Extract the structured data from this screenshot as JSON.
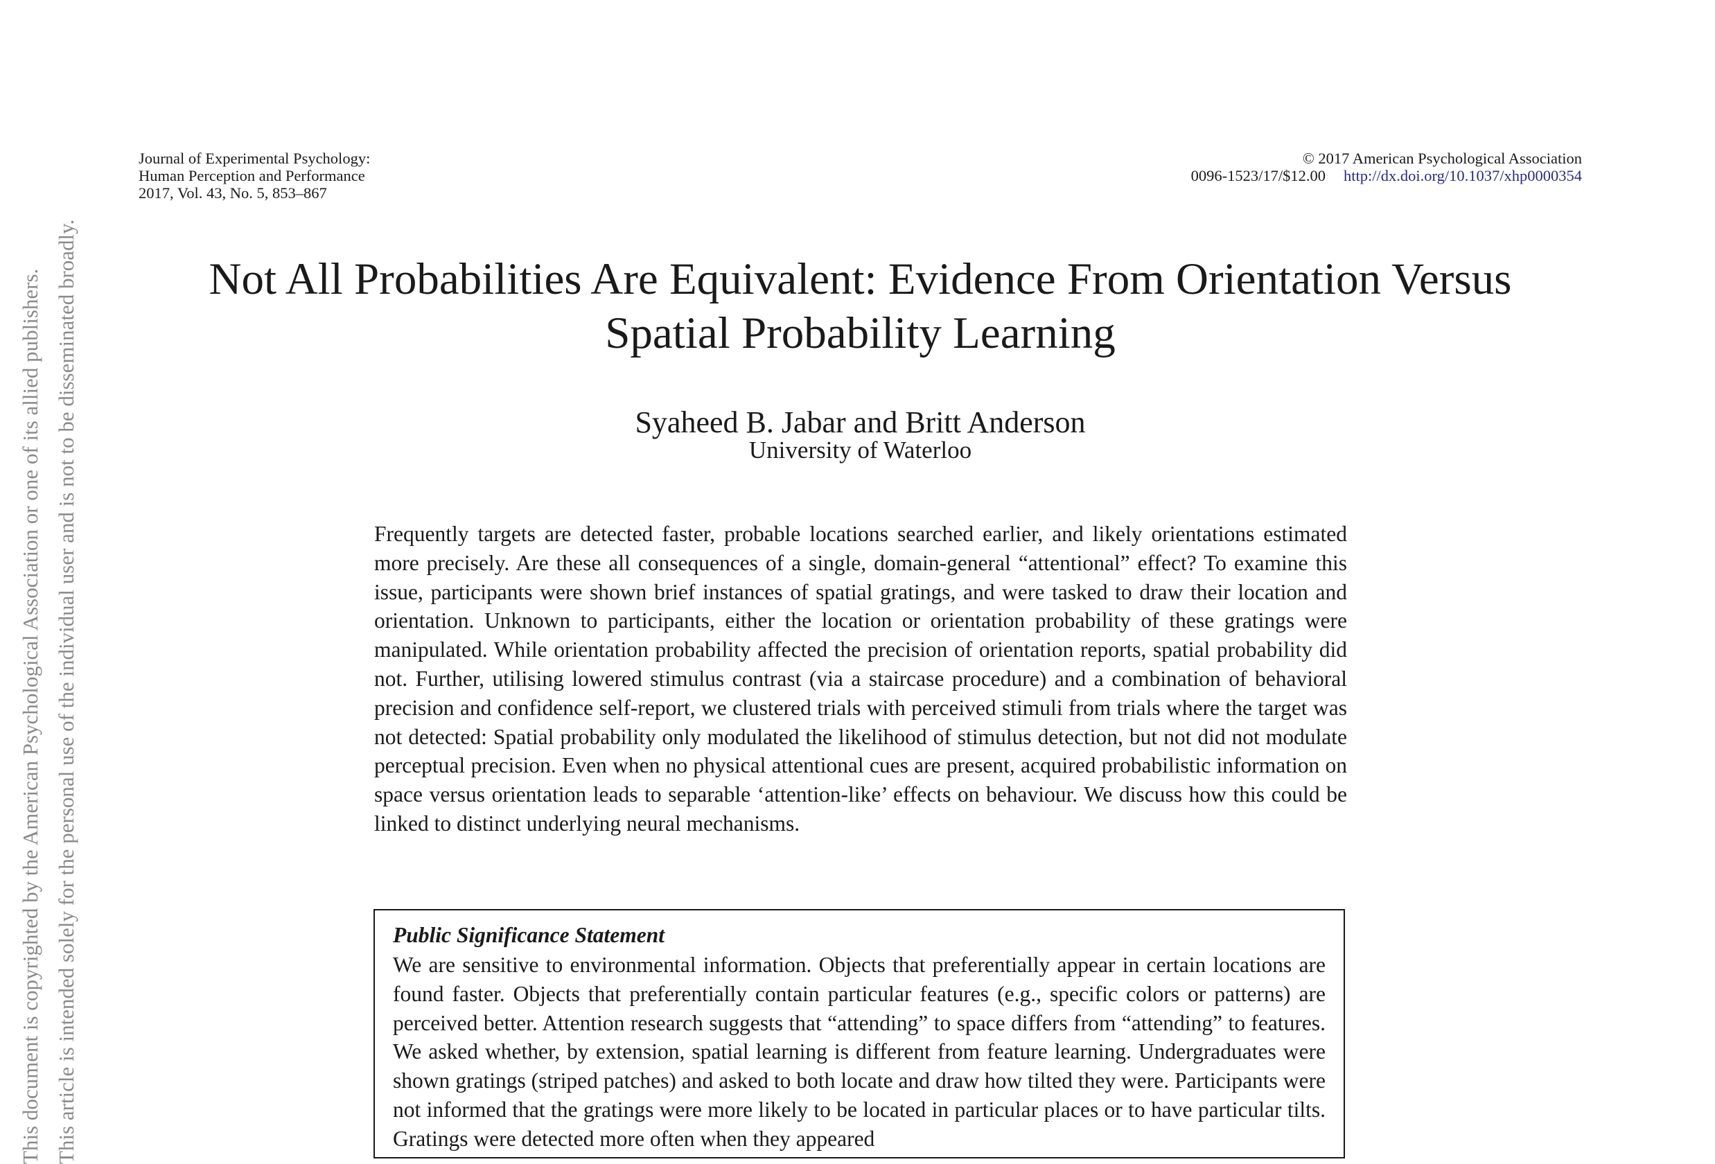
{
  "header": {
    "journal_line1": "Journal of Experimental Psychology:",
    "journal_line2": "Human Perception and Performance",
    "journal_line3": "2017, Vol. 43, No. 5, 853–867",
    "copyright": "© 2017 American Psychological Association",
    "issn_price": "0096-1523/17/$12.00",
    "doi": "http://dx.doi.org/10.1037/xhp0000354"
  },
  "article": {
    "title_line1": "Not All Probabilities Are Equivalent: Evidence From Orientation Versus",
    "title_line2": "Spatial Probability Learning",
    "authors": "Syaheed B. Jabar and Britt Anderson",
    "affiliation": "University of Waterloo",
    "abstract": "Frequently targets are detected faster, probable locations searched earlier, and likely orientations estimated more precisely. Are these all consequences of a single, domain-general “attentional” effect? To examine this issue, participants were shown brief instances of spatial gratings, and were tasked to draw their location and orientation. Unknown to participants, either the location or orientation probability of these gratings were manipulated. While orientation probability affected the precision of orientation reports, spatial probability did not. Further, utilising lowered stimulus contrast (via a staircase procedure) and a combination of behavioral precision and confidence self-report, we clustered trials with perceived stimuli from trials where the target was not detected: Spatial probability only modulated the likelihood of stimulus detection, but not did not modulate perceptual precision. Even when no physical attentional cues are present, acquired probabilistic information on space versus orientation leads to separable ‘attention-like’ effects on behaviour. We discuss how this could be linked to distinct underlying neural mechanisms."
  },
  "significance": {
    "heading": "Public Significance Statement",
    "text": "We are sensitive to environmental information. Objects that preferentially appear in certain locations are found faster. Objects that preferentially contain particular features (e.g., specific colors or patterns) are perceived better. Attention research suggests that “attending” to space differs from “attending” to features. We asked whether, by extension, spatial learning is different from feature learning. Undergraduates were shown gratings (striped patches) and asked to both locate and draw how tilted they were. Participants were not informed that the gratings were more likely to be located in particular places or to have particular tilts. Gratings were detected more often when they appeared"
  },
  "watermark": {
    "line1": "This document is copyrighted by the American Psychological Association or one of its allied publishers.",
    "line2": "This article is intended solely for the personal use of the individual user and is not to be disseminated broadly."
  }
}
